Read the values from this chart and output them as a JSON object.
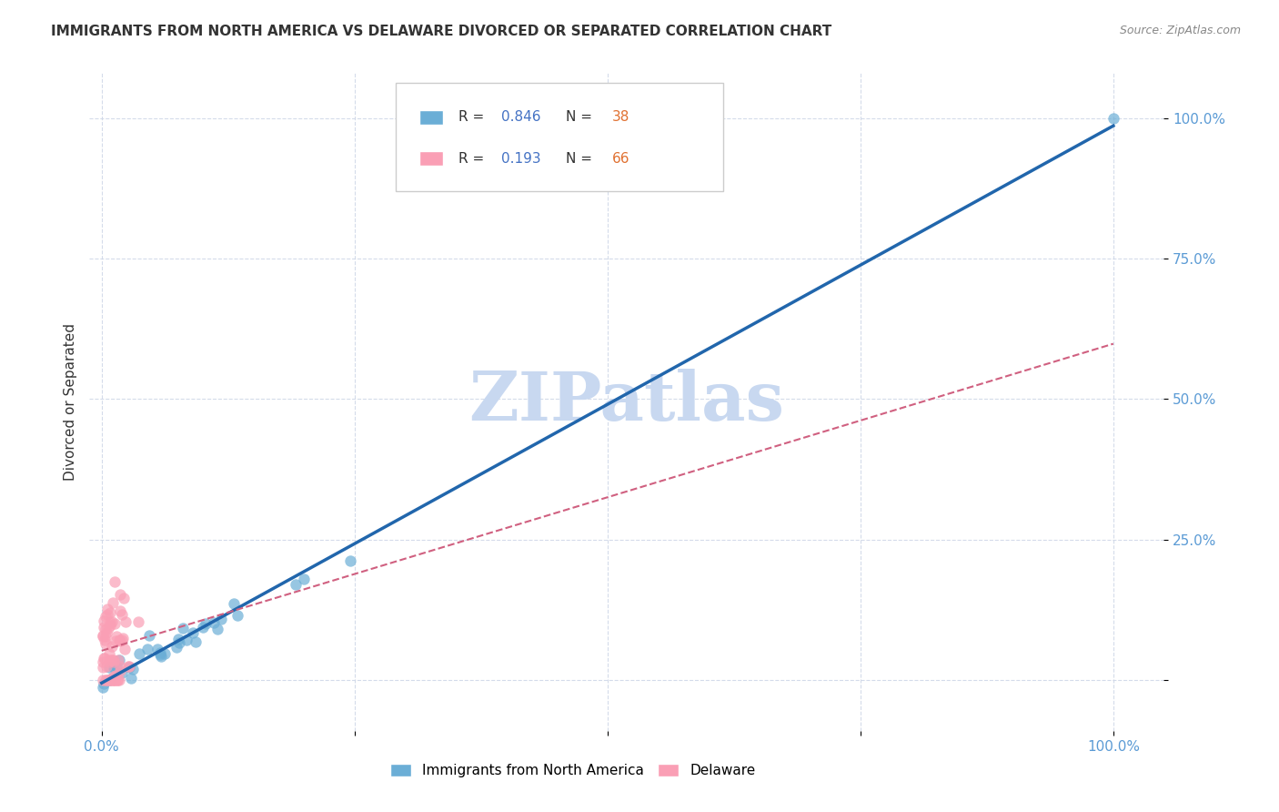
{
  "title": "IMMIGRANTS FROM NORTH AMERICA VS DELAWARE DIVORCED OR SEPARATED CORRELATION CHART",
  "source": "Source: ZipAtlas.com",
  "ylabel": "Divorced or Separated",
  "blue_R": 0.846,
  "blue_N": 38,
  "pink_R": 0.193,
  "pink_N": 66,
  "blue_color": "#6baed6",
  "pink_color": "#fa9fb5",
  "blue_line_color": "#2166ac",
  "pink_line_color": "#d06080",
  "watermark": "ZIPatlas",
  "watermark_color": "#c8d8f0",
  "legend_text_color": "#333333",
  "legend_value_color": "#4472c4",
  "legend_n_color": "#e07030",
  "axis_label_color": "#5b9bd5",
  "title_color": "#333333",
  "source_color": "#888888",
  "grid_color": "#d0d8e8"
}
